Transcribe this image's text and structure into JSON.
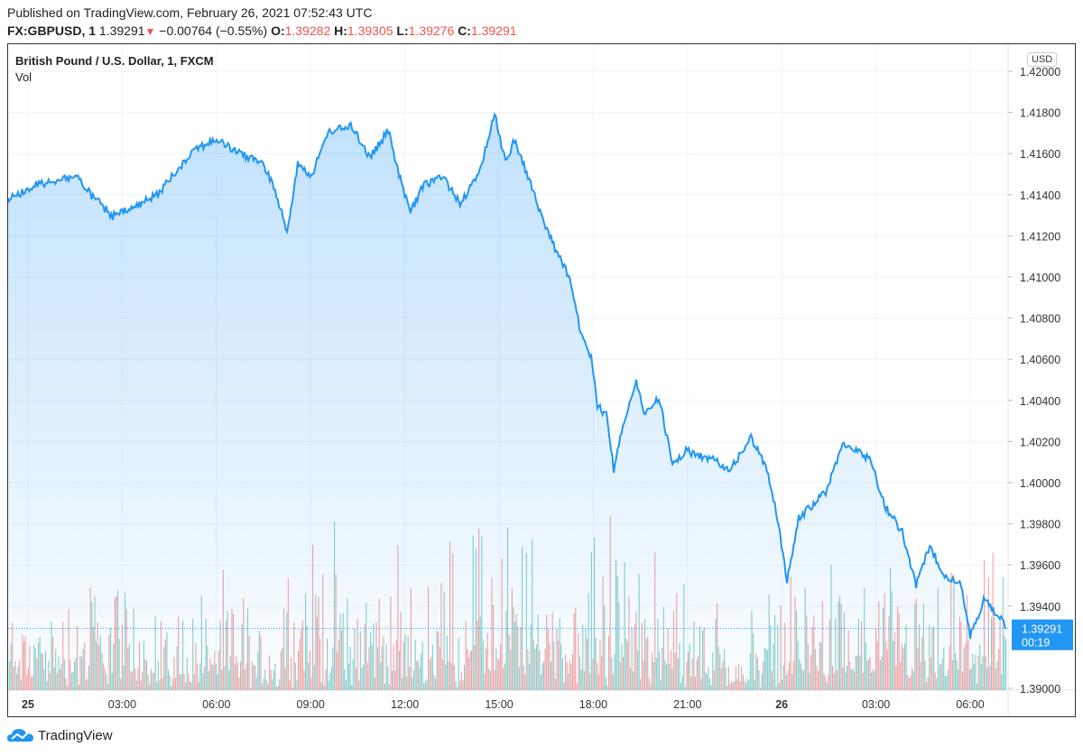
{
  "header": {
    "published": "Published on TradingView.com, February 26, 2021 07:52:43 UTC",
    "symbol": "FX:GBPUSD, 1",
    "last": "1.39291",
    "change": "−0.00764 (−0.55%)",
    "o_label": "O:",
    "o": "1.39282",
    "h_label": "H:",
    "h": "1.39305",
    "l_label": "L:",
    "l": "1.39276",
    "c_label": "C:",
    "c": "1.39291"
  },
  "legend": {
    "title": "British Pound / U.S. Dollar, 1, FXCM",
    "vol": "Vol"
  },
  "currency_button": "USD",
  "current_price": {
    "price": "1.39291",
    "countdown": "00:19",
    "value": 1.39291
  },
  "logo_text": "TradingView",
  "colors": {
    "line": "#2196f3",
    "up": "#26a69a",
    "down": "#ef5350",
    "label_bg": "#2196f3"
  },
  "chart_data": {
    "type": "area",
    "title": "British Pound / U.S. Dollar, 1, FXCM",
    "x_unit": "hours since Feb 25 00:00 UTC",
    "ylim": [
      1.39,
      1.42
    ],
    "y_ticks": [
      "1.42000",
      "1.41800",
      "1.41600",
      "1.41400",
      "1.41200",
      "1.41000",
      "1.40800",
      "1.40600",
      "1.40400",
      "1.40200",
      "1.40000",
      "1.39800",
      "1.39600",
      "1.39400",
      "1.39000"
    ],
    "y_tick_values": [
      1.42,
      1.418,
      1.416,
      1.414,
      1.412,
      1.41,
      1.408,
      1.406,
      1.404,
      1.402,
      1.4,
      1.398,
      1.396,
      1.394,
      1.39
    ],
    "x_ticks": [
      {
        "label": "25",
        "hour": 0,
        "bold": true
      },
      {
        "label": "03:00",
        "hour": 3
      },
      {
        "label": "06:00",
        "hour": 6
      },
      {
        "label": "09:00",
        "hour": 9
      },
      {
        "label": "12:00",
        "hour": 12
      },
      {
        "label": "15:00",
        "hour": 15
      },
      {
        "label": "18:00",
        "hour": 18
      },
      {
        "label": "21:00",
        "hour": 21
      },
      {
        "label": "26",
        "hour": 24,
        "bold": true
      },
      {
        "label": "03:00",
        "hour": 27
      },
      {
        "label": "06:00",
        "hour": 30
      }
    ],
    "x": [
      -0.66,
      -0.32,
      0.26,
      0.83,
      1.55,
      1.98,
      2.7,
      3.42,
      4.14,
      4.71,
      5.29,
      6.01,
      6.72,
      7.44,
      7.87,
      8.25,
      8.59,
      9.02,
      9.6,
      10.32,
      10.89,
      11.47,
      11.9,
      12.18,
      12.61,
      13.19,
      13.76,
      14.34,
      14.86,
      15.2,
      15.49,
      15.92,
      16.35,
      16.78,
      17.21,
      17.64,
      17.93,
      18.13,
      18.42,
      18.65,
      18.94,
      19.37,
      19.66,
      20.09,
      20.52,
      20.95,
      21.81,
      22.39,
      23.02,
      23.53,
      23.82,
      24.17,
      24.54,
      24.97,
      25.4,
      25.98,
      26.41,
      26.84,
      27.27,
      27.84,
      28.28,
      28.71,
      29.14,
      29.71,
      30.0,
      30.43,
      30.86,
      31.15
    ],
    "price": [
      1.41373,
      1.41403,
      1.41447,
      1.41469,
      1.41491,
      1.41403,
      1.41294,
      1.41338,
      1.41403,
      1.41513,
      1.41623,
      1.41667,
      1.41601,
      1.41557,
      1.41425,
      1.41215,
      1.41557,
      1.41491,
      1.41711,
      1.41732,
      1.41579,
      1.41711,
      1.41447,
      1.41316,
      1.41447,
      1.41491,
      1.4136,
      1.41491,
      1.41798,
      1.41557,
      1.41667,
      1.41491,
      1.41294,
      1.4114,
      1.41009,
      1.40702,
      1.40614,
      1.40373,
      1.40329,
      1.40066,
      1.40285,
      1.40482,
      1.40329,
      1.40417,
      1.40088,
      1.40154,
      1.4011,
      1.40066,
      1.40219,
      1.40066,
      1.39868,
      1.39518,
      1.39825,
      1.39891,
      1.39956,
      1.40197,
      1.40154,
      1.4011,
      1.39891,
      1.39759,
      1.39496,
      1.39693,
      1.39561,
      1.39496,
      1.39254,
      1.3943,
      1.39364,
      1.39291
    ],
    "volume_profile_hourly": [
      0.35,
      0.45,
      0.5,
      0.4,
      0.35,
      0.45,
      0.4,
      0.3,
      0.55,
      0.6,
      0.55,
      0.5,
      0.45,
      0.6,
      0.65,
      0.7,
      0.6,
      0.55,
      0.75,
      0.55,
      0.45,
      0.4,
      0.2,
      0.4,
      0.5,
      0.45,
      0.5,
      0.55,
      0.4,
      0.45,
      0.5,
      0.55
    ]
  }
}
